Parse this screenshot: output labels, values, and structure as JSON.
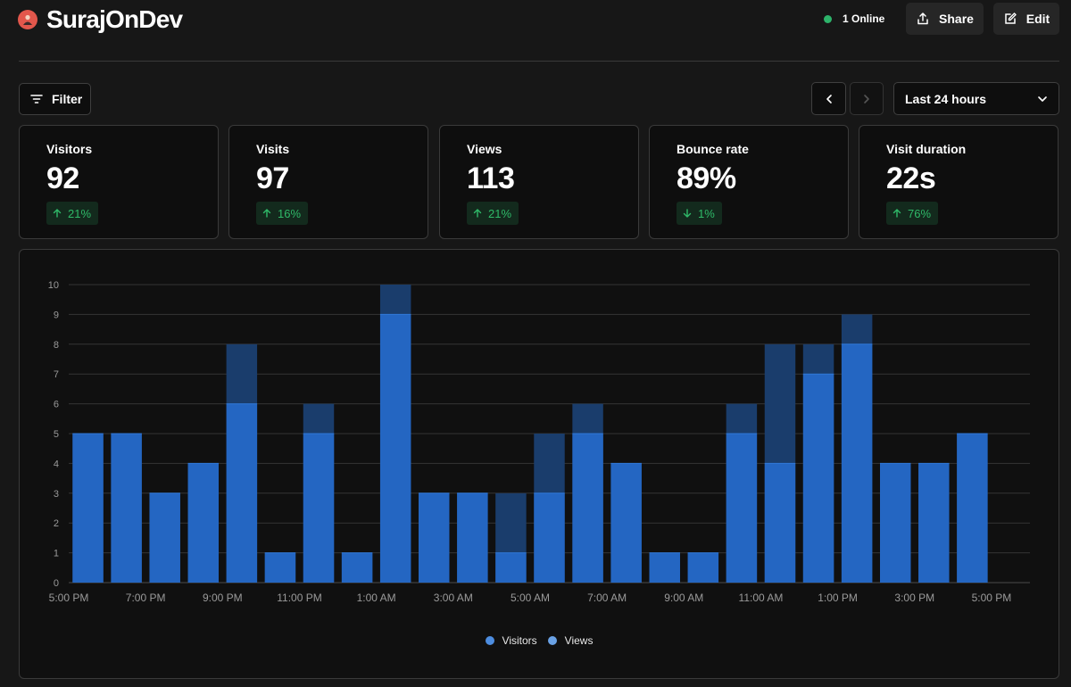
{
  "header": {
    "site_name": "SurajOnDev",
    "online_label": "1 Online",
    "share_label": "Share",
    "edit_label": "Edit"
  },
  "toolbar": {
    "filter_label": "Filter",
    "date_range": "Last 24 hours"
  },
  "metrics": [
    {
      "label": "Visitors",
      "value": "92",
      "change": "21%",
      "direction": "up"
    },
    {
      "label": "Visits",
      "value": "97",
      "change": "16%",
      "direction": "up"
    },
    {
      "label": "Views",
      "value": "113",
      "change": "21%",
      "direction": "up"
    },
    {
      "label": "Bounce rate",
      "value": "89%",
      "change": "1%",
      "direction": "down"
    },
    {
      "label": "Visit duration",
      "value": "22s",
      "change": "76%",
      "direction": "up"
    }
  ],
  "colors": {
    "visitors": "#2466c2",
    "views": "#1a3d6c",
    "positive": "#2fb968",
    "online_dot": "#2db36a"
  },
  "chart_data": {
    "type": "bar",
    "stacked_overlay": true,
    "hours": [
      "5:00 PM",
      "6:00 PM",
      "7:00 PM",
      "8:00 PM",
      "9:00 PM",
      "10:00 PM",
      "11:00 PM",
      "12:00 AM",
      "1:00 AM",
      "2:00 AM",
      "3:00 AM",
      "4:00 AM",
      "5:00 AM",
      "6:00 AM",
      "7:00 AM",
      "8:00 AM",
      "9:00 AM",
      "10:00 AM",
      "11:00 AM",
      "12:00 PM",
      "1:00 PM",
      "2:00 PM",
      "3:00 PM",
      "4:00 PM"
    ],
    "x_tick_labels": [
      "5:00 PM",
      "7:00 PM",
      "9:00 PM",
      "11:00 PM",
      "1:00 AM",
      "3:00 AM",
      "5:00 AM",
      "7:00 AM",
      "9:00 AM",
      "11:00 AM",
      "1:00 PM",
      "3:00 PM",
      "5:00 PM"
    ],
    "series": [
      {
        "name": "Visitors",
        "values": [
          5,
          5,
          3,
          4,
          6,
          1,
          5,
          1,
          9,
          3,
          3,
          1,
          3,
          5,
          4,
          1,
          1,
          5,
          4,
          7,
          8,
          4,
          4,
          5
        ]
      },
      {
        "name": "Views",
        "values": [
          5,
          5,
          3,
          4,
          8,
          1,
          6,
          1,
          10,
          3,
          3,
          3,
          5,
          6,
          4,
          1,
          1,
          6,
          8,
          8,
          9,
          4,
          4,
          5
        ]
      }
    ],
    "ylim": [
      0,
      10
    ],
    "y_ticks": [
      0,
      1,
      2,
      3,
      4,
      5,
      6,
      7,
      8,
      9,
      10
    ],
    "legend": [
      "Visitors",
      "Views"
    ],
    "legend_position": "bottom-center",
    "grid": true
  }
}
